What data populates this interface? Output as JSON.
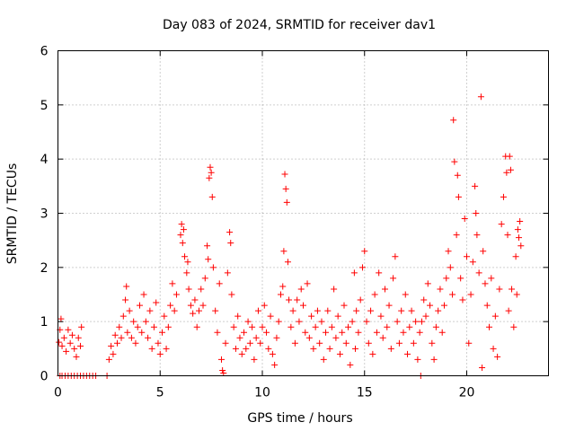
{
  "chart_data": {
    "type": "scatter",
    "title": "Day 083 of 2024, SRMTID for receiver dav1",
    "xlabel": "GPS time / hours",
    "ylabel": "SRMTID / TECUs",
    "xlim": [
      0,
      24
    ],
    "ylim": [
      0,
      6
    ],
    "x_ticks": [
      0,
      5,
      10,
      15,
      20
    ],
    "x_tick_labels": [
      "0",
      "5",
      "10",
      "15",
      "20"
    ],
    "y_ticks": [
      0,
      1,
      2,
      3,
      4,
      5,
      6
    ],
    "y_tick_labels": [
      "0",
      "1",
      "2",
      "3",
      "4",
      "5",
      "6"
    ],
    "grid": true,
    "marker": "+",
    "color": "#ff0000",
    "series": [
      {
        "name": "dav1",
        "points": [
          [
            0.05,
            0.62
          ],
          [
            0.1,
            0.85
          ],
          [
            0.15,
            1.05
          ],
          [
            0.2,
            0.55
          ],
          [
            0.3,
            0.7
          ],
          [
            0.4,
            0.45
          ],
          [
            0.5,
            0.85
          ],
          [
            0.6,
            0.6
          ],
          [
            0.7,
            0.75
          ],
          [
            0.8,
            0.5
          ],
          [
            0.9,
            0.35
          ],
          [
            1.0,
            0.7
          ],
          [
            1.1,
            0.55
          ],
          [
            1.15,
            0.9
          ],
          [
            0.1,
            0.0
          ],
          [
            0.2,
            0.0
          ],
          [
            0.35,
            0.0
          ],
          [
            0.5,
            0.0
          ],
          [
            0.65,
            0.0
          ],
          [
            0.8,
            0.0
          ],
          [
            0.95,
            0.0
          ],
          [
            1.1,
            0.0
          ],
          [
            1.25,
            0.0
          ],
          [
            1.4,
            0.0
          ],
          [
            1.55,
            0.0
          ],
          [
            1.7,
            0.0
          ],
          [
            1.85,
            0.0
          ],
          [
            2.4,
            0.0
          ],
          [
            2.5,
            0.3
          ],
          [
            2.6,
            0.55
          ],
          [
            2.7,
            0.4
          ],
          [
            2.8,
            0.75
          ],
          [
            2.9,
            0.6
          ],
          [
            3.0,
            0.9
          ],
          [
            3.1,
            0.7
          ],
          [
            3.2,
            1.1
          ],
          [
            3.3,
            1.4
          ],
          [
            3.35,
            1.65
          ],
          [
            3.4,
            0.8
          ],
          [
            3.5,
            1.2
          ],
          [
            3.6,
            0.7
          ],
          [
            3.7,
            1.0
          ],
          [
            3.8,
            0.6
          ],
          [
            3.9,
            0.9
          ],
          [
            4.0,
            1.3
          ],
          [
            4.1,
            0.8
          ],
          [
            4.2,
            1.5
          ],
          [
            4.3,
            1.0
          ],
          [
            4.4,
            0.7
          ],
          [
            4.5,
            1.2
          ],
          [
            4.6,
            0.5
          ],
          [
            4.7,
            0.9
          ],
          [
            4.8,
            1.35
          ],
          [
            4.9,
            0.6
          ],
          [
            5.0,
            0.4
          ],
          [
            5.1,
            0.8
          ],
          [
            5.2,
            1.1
          ],
          [
            5.3,
            0.5
          ],
          [
            5.4,
            0.9
          ],
          [
            5.5,
            1.3
          ],
          [
            5.6,
            1.7
          ],
          [
            5.7,
            1.2
          ],
          [
            5.8,
            1.5
          ],
          [
            6.0,
            2.6
          ],
          [
            6.05,
            2.8
          ],
          [
            6.1,
            2.45
          ],
          [
            6.15,
            2.7
          ],
          [
            6.2,
            2.2
          ],
          [
            6.3,
            1.9
          ],
          [
            6.35,
            2.1
          ],
          [
            6.4,
            1.6
          ],
          [
            6.5,
            1.3
          ],
          [
            6.6,
            1.15
          ],
          [
            6.7,
            1.4
          ],
          [
            6.8,
            0.9
          ],
          [
            6.9,
            1.2
          ],
          [
            7.0,
            1.6
          ],
          [
            7.1,
            1.3
          ],
          [
            7.2,
            1.8
          ],
          [
            7.3,
            2.4
          ],
          [
            7.35,
            2.15
          ],
          [
            7.4,
            3.65
          ],
          [
            7.45,
            3.85
          ],
          [
            7.5,
            3.75
          ],
          [
            7.55,
            3.3
          ],
          [
            7.6,
            2.0
          ],
          [
            7.7,
            1.2
          ],
          [
            7.8,
            0.8
          ],
          [
            7.9,
            1.7
          ],
          [
            8.0,
            0.3
          ],
          [
            8.05,
            0.1
          ],
          [
            8.1,
            0.05
          ],
          [
            8.2,
            0.6
          ],
          [
            8.3,
            1.9
          ],
          [
            8.4,
            2.65
          ],
          [
            8.45,
            2.45
          ],
          [
            8.5,
            1.5
          ],
          [
            8.6,
            0.9
          ],
          [
            8.7,
            0.5
          ],
          [
            8.8,
            1.1
          ],
          [
            8.9,
            0.7
          ],
          [
            9.0,
            0.4
          ],
          [
            9.1,
            0.8
          ],
          [
            9.2,
            0.5
          ],
          [
            9.3,
            1.0
          ],
          [
            9.4,
            0.6
          ],
          [
            9.5,
            0.9
          ],
          [
            9.6,
            0.3
          ],
          [
            9.7,
            0.7
          ],
          [
            9.8,
            1.2
          ],
          [
            9.9,
            0.6
          ],
          [
            10.0,
            0.9
          ],
          [
            10.1,
            1.3
          ],
          [
            10.2,
            0.8
          ],
          [
            10.3,
            0.5
          ],
          [
            10.4,
            1.1
          ],
          [
            10.5,
            0.4
          ],
          [
            10.6,
            0.2
          ],
          [
            10.7,
            0.7
          ],
          [
            10.8,
            1.0
          ],
          [
            10.9,
            1.5
          ],
          [
            11.0,
            1.65
          ],
          [
            11.05,
            2.3
          ],
          [
            11.1,
            3.72
          ],
          [
            11.15,
            3.45
          ],
          [
            11.2,
            3.2
          ],
          [
            11.25,
            2.1
          ],
          [
            11.3,
            1.4
          ],
          [
            11.4,
            0.9
          ],
          [
            11.5,
            1.2
          ],
          [
            11.6,
            0.6
          ],
          [
            11.7,
            1.4
          ],
          [
            11.8,
            1.0
          ],
          [
            11.9,
            1.6
          ],
          [
            12.0,
            1.3
          ],
          [
            12.1,
            0.8
          ],
          [
            12.2,
            1.7
          ],
          [
            12.3,
            0.7
          ],
          [
            12.4,
            1.1
          ],
          [
            12.5,
            0.5
          ],
          [
            12.6,
            0.9
          ],
          [
            12.7,
            1.2
          ],
          [
            12.8,
            0.6
          ],
          [
            12.9,
            1.0
          ],
          [
            13.0,
            0.3
          ],
          [
            13.1,
            0.8
          ],
          [
            13.2,
            1.2
          ],
          [
            13.3,
            0.5
          ],
          [
            13.4,
            0.9
          ],
          [
            13.5,
            1.6
          ],
          [
            13.6,
            0.7
          ],
          [
            13.7,
            1.1
          ],
          [
            13.8,
            0.4
          ],
          [
            13.9,
            0.8
          ],
          [
            14.0,
            1.3
          ],
          [
            14.1,
            0.6
          ],
          [
            14.2,
            0.9
          ],
          [
            14.3,
            0.2
          ],
          [
            14.4,
            1.0
          ],
          [
            14.5,
            1.9
          ],
          [
            14.55,
            0.5
          ],
          [
            14.6,
            1.2
          ],
          [
            14.7,
            0.8
          ],
          [
            14.8,
            1.4
          ],
          [
            14.9,
            2.0
          ],
          [
            15.0,
            2.3
          ],
          [
            15.1,
            1.0
          ],
          [
            15.2,
            0.6
          ],
          [
            15.3,
            1.2
          ],
          [
            15.4,
            0.4
          ],
          [
            15.5,
            1.5
          ],
          [
            15.6,
            0.8
          ],
          [
            15.7,
            1.9
          ],
          [
            15.8,
            1.1
          ],
          [
            15.9,
            0.7
          ],
          [
            16.0,
            1.6
          ],
          [
            16.1,
            0.9
          ],
          [
            16.2,
            1.3
          ],
          [
            16.3,
            0.5
          ],
          [
            16.4,
            1.8
          ],
          [
            16.5,
            2.2
          ],
          [
            16.6,
            1.0
          ],
          [
            16.7,
            0.6
          ],
          [
            16.8,
            1.2
          ],
          [
            16.9,
            0.8
          ],
          [
            17.0,
            1.5
          ],
          [
            17.1,
            0.4
          ],
          [
            17.2,
            0.9
          ],
          [
            17.3,
            1.2
          ],
          [
            17.4,
            0.6
          ],
          [
            17.5,
            1.0
          ],
          [
            17.6,
            0.3
          ],
          [
            17.7,
            0.8
          ],
          [
            17.75,
            0.0
          ],
          [
            17.8,
            1.0
          ],
          [
            17.9,
            1.4
          ],
          [
            18.0,
            1.1
          ],
          [
            18.1,
            1.7
          ],
          [
            18.2,
            1.3
          ],
          [
            18.3,
            0.6
          ],
          [
            18.4,
            0.3
          ],
          [
            18.5,
            0.9
          ],
          [
            18.6,
            1.2
          ],
          [
            18.7,
            1.6
          ],
          [
            18.8,
            0.8
          ],
          [
            18.9,
            1.3
          ],
          [
            19.0,
            1.8
          ],
          [
            19.1,
            2.3
          ],
          [
            19.2,
            2.0
          ],
          [
            19.3,
            1.5
          ],
          [
            19.35,
            4.72
          ],
          [
            19.4,
            3.95
          ],
          [
            19.5,
            2.6
          ],
          [
            19.55,
            3.7
          ],
          [
            19.6,
            3.3
          ],
          [
            19.7,
            1.8
          ],
          [
            19.8,
            1.4
          ],
          [
            19.9,
            2.9
          ],
          [
            20.0,
            2.2
          ],
          [
            20.1,
            0.6
          ],
          [
            20.2,
            1.5
          ],
          [
            20.3,
            2.1
          ],
          [
            20.4,
            3.5
          ],
          [
            20.45,
            3.0
          ],
          [
            20.5,
            2.6
          ],
          [
            20.6,
            1.9
          ],
          [
            20.7,
            5.15
          ],
          [
            20.75,
            0.15
          ],
          [
            20.8,
            2.3
          ],
          [
            20.9,
            1.7
          ],
          [
            21.0,
            1.3
          ],
          [
            21.1,
            0.9
          ],
          [
            21.2,
            1.8
          ],
          [
            21.3,
            0.5
          ],
          [
            21.4,
            1.1
          ],
          [
            21.5,
            0.35
          ],
          [
            21.6,
            1.6
          ],
          [
            21.7,
            2.8
          ],
          [
            21.8,
            3.3
          ],
          [
            21.9,
            4.05
          ],
          [
            21.95,
            3.75
          ],
          [
            22.0,
            2.6
          ],
          [
            22.05,
            1.2
          ],
          [
            22.1,
            4.05
          ],
          [
            22.15,
            3.8
          ],
          [
            22.2,
            1.6
          ],
          [
            22.3,
            0.9
          ],
          [
            22.4,
            2.2
          ],
          [
            22.45,
            1.5
          ],
          [
            22.5,
            2.7
          ],
          [
            22.55,
            2.55
          ],
          [
            22.6,
            2.85
          ],
          [
            22.65,
            2.4
          ]
        ]
      }
    ]
  }
}
